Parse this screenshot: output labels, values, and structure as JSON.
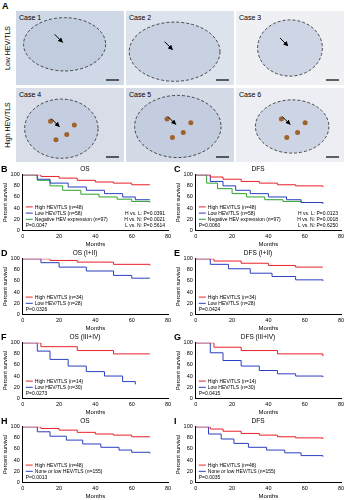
{
  "images": {
    "panel": "A",
    "rows": [
      {
        "label": "Low HEV/TLS",
        "cases": [
          "Case 1",
          "Case 2",
          "Case 3"
        ]
      },
      {
        "label": "High HEV/TLS",
        "cases": [
          "Case 4",
          "Case 5",
          "Case 6"
        ]
      }
    ]
  },
  "chart_data": [
    {
      "type": "line",
      "panel": "B",
      "title": "OS",
      "x_label": "Months",
      "y_label": "Percent survival",
      "xlim": [
        0,
        80
      ],
      "xticks": [
        0,
        20,
        40,
        60,
        80
      ],
      "ylim": [
        0,
        100
      ],
      "yticks": [
        0,
        20,
        40,
        60,
        80,
        100
      ],
      "grid": false,
      "legend": "lower left",
      "line_style": "step",
      "series": [
        {
          "name": "High HEV/TLS (n=48)",
          "color": "#e8202a",
          "x": [
            0,
            10,
            20,
            30,
            40,
            50,
            60,
            70
          ],
          "values": [
            100,
            97,
            94,
            90,
            87,
            85,
            82,
            82
          ]
        },
        {
          "name": "Low HEV/TLS (n=58)",
          "color": "#2a3fc0",
          "x": [
            0,
            8,
            15,
            25,
            35,
            45,
            55,
            62,
            70
          ],
          "values": [
            100,
            92,
            85,
            78,
            72,
            66,
            60,
            55,
            55
          ]
        },
        {
          "name": "Negative HEV expression (n=97)",
          "color": "#2ca02c",
          "x": [
            0,
            8,
            15,
            22,
            32,
            42,
            52,
            60,
            70
          ],
          "values": [
            100,
            90,
            80,
            72,
            65,
            60,
            56,
            52,
            50
          ]
        }
      ],
      "comparisons": [
        "H vs. L: P=0.0391",
        "H vs. N: P=0.0021",
        "L vs. N: P=0.5614"
      ],
      "p_value": "P=0.0047"
    },
    {
      "type": "line",
      "panel": "C",
      "title": "DFS",
      "x_label": "Months",
      "y_label": "Percent survival",
      "xlim": [
        0,
        80
      ],
      "xticks": [
        0,
        20,
        40,
        60,
        80
      ],
      "ylim": [
        0,
        100
      ],
      "yticks": [
        0,
        20,
        40,
        60,
        80,
        100
      ],
      "grid": false,
      "legend": "lower left",
      "line_style": "step",
      "series": [
        {
          "name": "High HEV/TLS (n=48)",
          "color": "#e8202a",
          "x": [
            0,
            8,
            15,
            25,
            35,
            45,
            55,
            70
          ],
          "values": [
            100,
            96,
            92,
            88,
            85,
            82,
            80,
            78
          ]
        },
        {
          "name": "Low HEV/TLS (n=58)",
          "color": "#2a3fc0",
          "x": [
            0,
            8,
            15,
            22,
            30,
            40,
            50,
            58,
            70
          ],
          "values": [
            100,
            88,
            80,
            72,
            66,
            60,
            55,
            50,
            48
          ]
        },
        {
          "name": "Negative HEV expression (n=97)",
          "color": "#2ca02c",
          "x": [
            0,
            6,
            12,
            20,
            28,
            38,
            48,
            58,
            70
          ],
          "values": [
            100,
            85,
            75,
            66,
            60,
            55,
            52,
            50,
            48
          ]
        }
      ],
      "comparisons": [
        "H vs. L: P=0.0123",
        "H vs. N: P=0.0018",
        "L vs. N: P=0.6250"
      ],
      "p_value": "P=0.0060"
    },
    {
      "type": "line",
      "panel": "D",
      "title": "OS (I+II)",
      "x_label": "Months",
      "y_label": "Percent survival",
      "xlim": [
        0,
        80
      ],
      "xticks": [
        0,
        20,
        40,
        60,
        80
      ],
      "ylim": [
        0,
        100
      ],
      "yticks": [
        0,
        20,
        40,
        60,
        80,
        100
      ],
      "grid": false,
      "legend": "lower left",
      "line_style": "step",
      "series": [
        {
          "name": "High HEV/TLS (n=34)",
          "color": "#e8202a",
          "x": [
            0,
            15,
            30,
            50,
            70
          ],
          "values": [
            100,
            97,
            94,
            90,
            88
          ]
        },
        {
          "name": "Low HEV/TLS (n=28)",
          "color": "#2a3fc0",
          "x": [
            0,
            10,
            20,
            35,
            50,
            60,
            70
          ],
          "values": [
            100,
            93,
            85,
            78,
            70,
            65,
            65
          ]
        }
      ],
      "p_value": "P=0.0326"
    },
    {
      "type": "line",
      "panel": "E",
      "title": "DFS (I+II)",
      "x_label": "Months",
      "y_label": "Percent survival",
      "xlim": [
        0,
        80
      ],
      "xticks": [
        0,
        20,
        40,
        60,
        80
      ],
      "ylim": [
        0,
        100
      ],
      "yticks": [
        0,
        20,
        40,
        60,
        80,
        100
      ],
      "grid": false,
      "legend": "lower left",
      "line_style": "step",
      "series": [
        {
          "name": "High HEV/TLS (n=34)",
          "color": "#e8202a",
          "x": [
            0,
            10,
            25,
            40,
            55,
            70
          ],
          "values": [
            100,
            96,
            92,
            88,
            85,
            85
          ]
        },
        {
          "name": "Low HEV/TLS (n=28)",
          "color": "#2a3fc0",
          "x": [
            0,
            8,
            18,
            30,
            42,
            55,
            70
          ],
          "values": [
            100,
            90,
            82,
            74,
            68,
            62,
            60
          ]
        }
      ],
      "p_value": "P=0.0424"
    },
    {
      "type": "line",
      "panel": "F",
      "title": "OS (III+IV)",
      "x_label": "Months",
      "y_label": "Percent survival",
      "xlim": [
        0,
        80
      ],
      "xticks": [
        0,
        20,
        40,
        60,
        80
      ],
      "ylim": [
        0,
        100
      ],
      "yticks": [
        0,
        20,
        40,
        60,
        80,
        100
      ],
      "grid": false,
      "legend": "lower left",
      "line_style": "step",
      "series": [
        {
          "name": "High HEV/TLS (n=14)",
          "color": "#e8202a",
          "x": [
            0,
            10,
            30,
            50,
            70
          ],
          "values": [
            100,
            93,
            86,
            80,
            80
          ]
        },
        {
          "name": "Low HEV/TLS (n=30)",
          "color": "#2a3fc0",
          "x": [
            0,
            8,
            15,
            25,
            35,
            45,
            55,
            62
          ],
          "values": [
            100,
            85,
            70,
            58,
            48,
            40,
            30,
            25
          ]
        }
      ],
      "p_value": "P=0.0273"
    },
    {
      "type": "line",
      "panel": "G",
      "title": "DFS (III+IV)",
      "x_label": "Months",
      "y_label": "Percent survival",
      "xlim": [
        0,
        80
      ],
      "xticks": [
        0,
        20,
        40,
        60,
        80
      ],
      "ylim": [
        0,
        100
      ],
      "yticks": [
        0,
        20,
        40,
        60,
        80,
        100
      ],
      "grid": false,
      "legend": "lower left",
      "line_style": "step",
      "series": [
        {
          "name": "High HEV/TLS (n=14)",
          "color": "#e8202a",
          "x": [
            0,
            10,
            25,
            45,
            70
          ],
          "values": [
            100,
            92,
            86,
            80,
            76
          ]
        },
        {
          "name": "Low HEV/TLS (n=30)",
          "color": "#2a3fc0",
          "x": [
            0,
            8,
            15,
            25,
            35,
            45,
            55,
            70
          ],
          "values": [
            100,
            82,
            68,
            58,
            50,
            44,
            40,
            38
          ]
        }
      ],
      "p_value": "P=0.0415"
    },
    {
      "type": "line",
      "panel": "H",
      "title": "OS",
      "x_label": "Months",
      "y_label": "Percent survival",
      "xlim": [
        0,
        80
      ],
      "xticks": [
        0,
        20,
        40,
        60,
        80
      ],
      "ylim": [
        0,
        100
      ],
      "yticks": [
        0,
        20,
        40,
        60,
        80,
        100
      ],
      "grid": false,
      "legend": "lower left",
      "line_style": "step",
      "series": [
        {
          "name": "High HEV/TLS (n=48)",
          "color": "#e8202a",
          "x": [
            0,
            10,
            20,
            30,
            40,
            50,
            60,
            70
          ],
          "values": [
            100,
            97,
            94,
            90,
            87,
            85,
            82,
            82
          ]
        },
        {
          "name": "None or low HEV/TLS (n=155)",
          "color": "#2a3fc0",
          "x": [
            0,
            8,
            15,
            24,
            33,
            43,
            53,
            60,
            70
          ],
          "values": [
            100,
            91,
            83,
            76,
            69,
            63,
            58,
            54,
            52
          ]
        }
      ],
      "p_value": "P=0.0013"
    },
    {
      "type": "line",
      "panel": "I",
      "title": "DFS",
      "x_label": "Months",
      "y_label": "Percent survival",
      "xlim": [
        0,
        80
      ],
      "xticks": [
        0,
        20,
        40,
        60,
        80
      ],
      "ylim": [
        0,
        100
      ],
      "yticks": [
        0,
        20,
        40,
        60,
        80,
        100
      ],
      "grid": false,
      "legend": "lower left",
      "line_style": "step",
      "series": [
        {
          "name": "High HEV/TLS (n=48)",
          "color": "#e8202a",
          "x": [
            0,
            8,
            15,
            25,
            35,
            45,
            55,
            70
          ],
          "values": [
            100,
            96,
            92,
            88,
            85,
            82,
            80,
            78
          ]
        },
        {
          "name": "None or low HEV/TLS (n=155)",
          "color": "#2a3fc0",
          "x": [
            0,
            7,
            14,
            21,
            29,
            39,
            49,
            58,
            70
          ],
          "values": [
            100,
            87,
            78,
            70,
            63,
            58,
            53,
            48,
            46
          ]
        }
      ],
      "p_value": "P=0.0035"
    }
  ]
}
